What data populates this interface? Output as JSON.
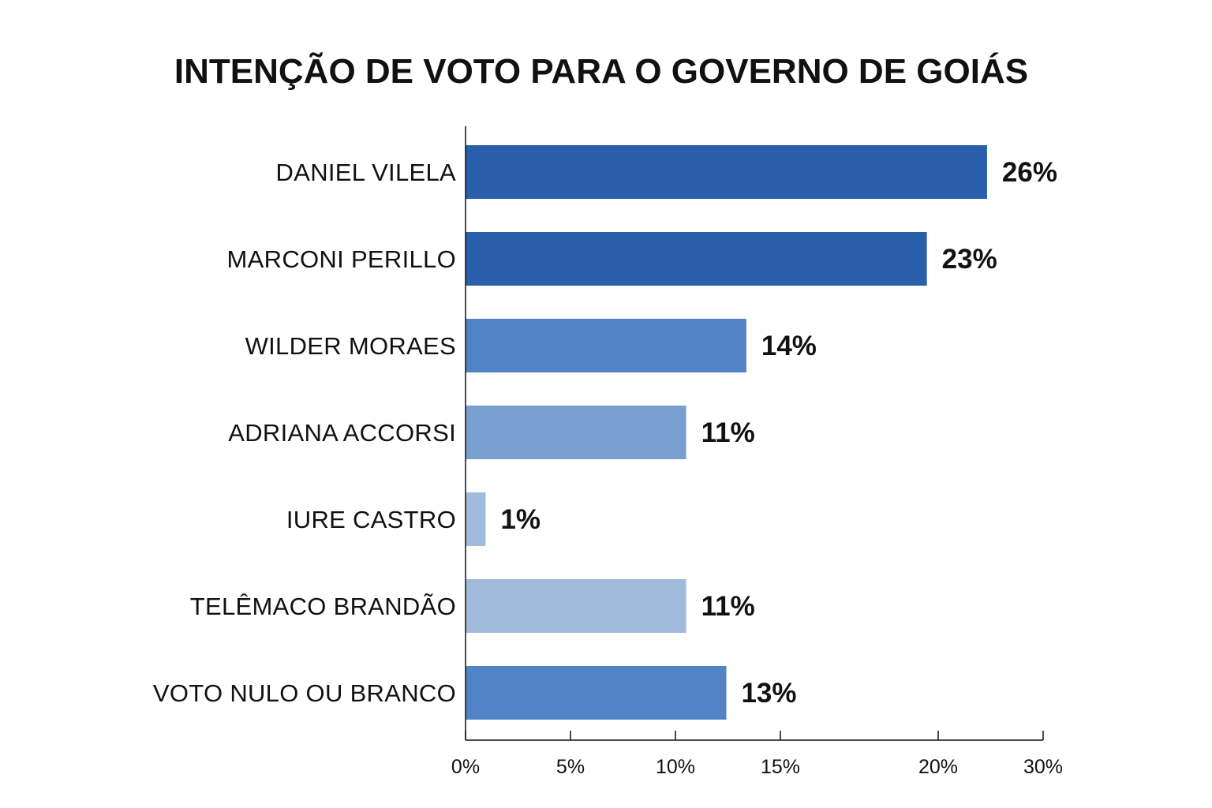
{
  "chart_data": {
    "type": "bar",
    "orientation": "horizontal",
    "title": "INTENÇÃO DE VOTO PARA O GOVERNO DE GOIÁS",
    "categories": [
      "DANIEL VILELA",
      "MARCONI PERILLO",
      "WILDER MORAES",
      "ADRIANA ACCORSI",
      "IURE CASTRO",
      "TELÊMACO BRANDÃO",
      "VOTO NULO OU BRANCO"
    ],
    "values": [
      26,
      23,
      14,
      11,
      1,
      11,
      13
    ],
    "value_labels": [
      "26%",
      "23%",
      "14%",
      "11%",
      "1%",
      "11%",
      "13%"
    ],
    "bar_colors": [
      "#2a5fab",
      "#2a5fab",
      "#5283c6",
      "#789fd0",
      "#a0bbdb",
      "#a0bbdb",
      "#5283c6"
    ],
    "x_ticks": [
      {
        "value": 0,
        "label": "0%"
      },
      {
        "value": 5,
        "label": "5%"
      },
      {
        "value": 10,
        "label": "10%"
      },
      {
        "value": 15,
        "label": "15%"
      },
      {
        "value": 20,
        "label": "20%"
      },
      {
        "value": 30,
        "label": "30%"
      }
    ],
    "xlabel": "",
    "ylabel": "",
    "legend": "none",
    "grid": false
  }
}
